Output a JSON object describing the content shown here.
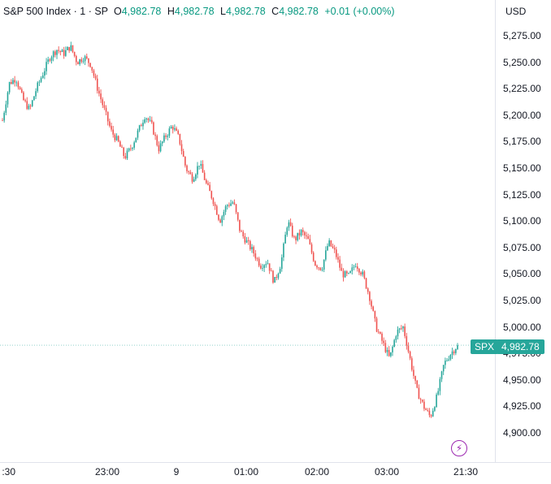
{
  "legend": {
    "symbol_text": "S&P 500 Index · 1 · SP",
    "open_label": "O",
    "open": "4,982.78",
    "high_label": "H",
    "high": "4,982.78",
    "low_label": "L",
    "low": "4,982.78",
    "close_label": "C",
    "close": "4,982.78",
    "change": "+0.01 (+0.00%)"
  },
  "currency": "USD",
  "price_badge": {
    "symbol": "SPX",
    "value": "4,982.78"
  },
  "colors": {
    "up": "#26a69a",
    "down": "#ef5350",
    "badge": "#26a69a",
    "grid": "#e0e3eb",
    "accent_icon": "#9c27b0"
  },
  "icons": {
    "bolt": "lightning-icon"
  },
  "chart_data": {
    "type": "candlestick",
    "ylim": [
      4880,
      5290
    ],
    "y_ticks": [
      "5,275.00",
      "5,250.00",
      "5,225.00",
      "5,200.00",
      "5,175.00",
      "5,150.00",
      "5,125.00",
      "5,100.00",
      "5,075.00",
      "5,050.00",
      "5,025.00",
      "5,000.00",
      "4,975.00",
      "4,950.00",
      "4,925.00",
      "4,900.00"
    ],
    "y_tick_values": [
      5275,
      5250,
      5225,
      5200,
      5175,
      5150,
      5125,
      5100,
      5075,
      5050,
      5025,
      5000,
      4975,
      4950,
      4925,
      4900
    ],
    "x_ticks": [
      ":30",
      "23:00",
      "9",
      "01:00",
      "02:00",
      "03:00",
      "21:30"
    ],
    "last_price": 4982.78,
    "close_path": [
      5195,
      5230,
      5235,
      5215,
      5205,
      5225,
      5240,
      5255,
      5262,
      5258,
      5265,
      5250,
      5255,
      5248,
      5225,
      5205,
      5185,
      5175,
      5160,
      5170,
      5185,
      5200,
      5190,
      5168,
      5180,
      5190,
      5178,
      5150,
      5140,
      5155,
      5135,
      5120,
      5100,
      5115,
      5118,
      5090,
      5080,
      5070,
      5058,
      5062,
      5042,
      5060,
      5100,
      5082,
      5090,
      5082,
      5060,
      5055,
      5080,
      5070,
      5050,
      5048,
      5060,
      5050,
      5030,
      5000,
      4985,
      4970,
      4995,
      5000,
      4970,
      4940,
      4925,
      4915,
      4935,
      4965,
      4975,
      4982.78
    ]
  }
}
